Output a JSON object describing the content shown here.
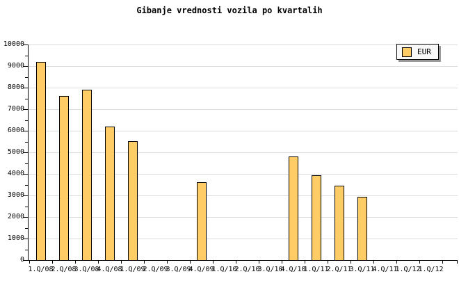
{
  "chart_data": {
    "type": "bar",
    "title": "Gibanje vrednosti vozila po kvartalih",
    "categories": [
      "1.Q/08",
      "2.Q/08",
      "3.Q/08",
      "4.Q/08",
      "1.Q/09",
      "2.Q/09",
      "3.Q/09",
      "4.Q/09",
      "1.Q/10",
      "2.Q/10",
      "3.Q/10",
      "4.Q/10",
      "1.Q/11",
      "2.Q/11",
      "3.Q/11",
      "4.Q/11",
      "1.Q/12",
      "1.Q/12"
    ],
    "series": [
      {
        "name": "EUR",
        "values": [
          9200,
          7600,
          7900,
          6200,
          5500,
          null,
          null,
          3600,
          null,
          null,
          null,
          4800,
          3950,
          3450,
          2950,
          null,
          null,
          null
        ]
      }
    ],
    "ylabel": "",
    "xlabel": "",
    "ylim": [
      0,
      10000
    ],
    "ytick_major": 1000,
    "ytick_minor": 500,
    "grid": "horizontal",
    "legend_position": "top-right",
    "colors": {
      "bar_fill": "#FFCC66",
      "bar_border": "#000000",
      "grid": "#DCDCDC",
      "axis": "#000000",
      "legend_bg": "#F8F8F8",
      "legend_shadow": "#999999"
    }
  },
  "legend": {
    "label": "EUR"
  }
}
